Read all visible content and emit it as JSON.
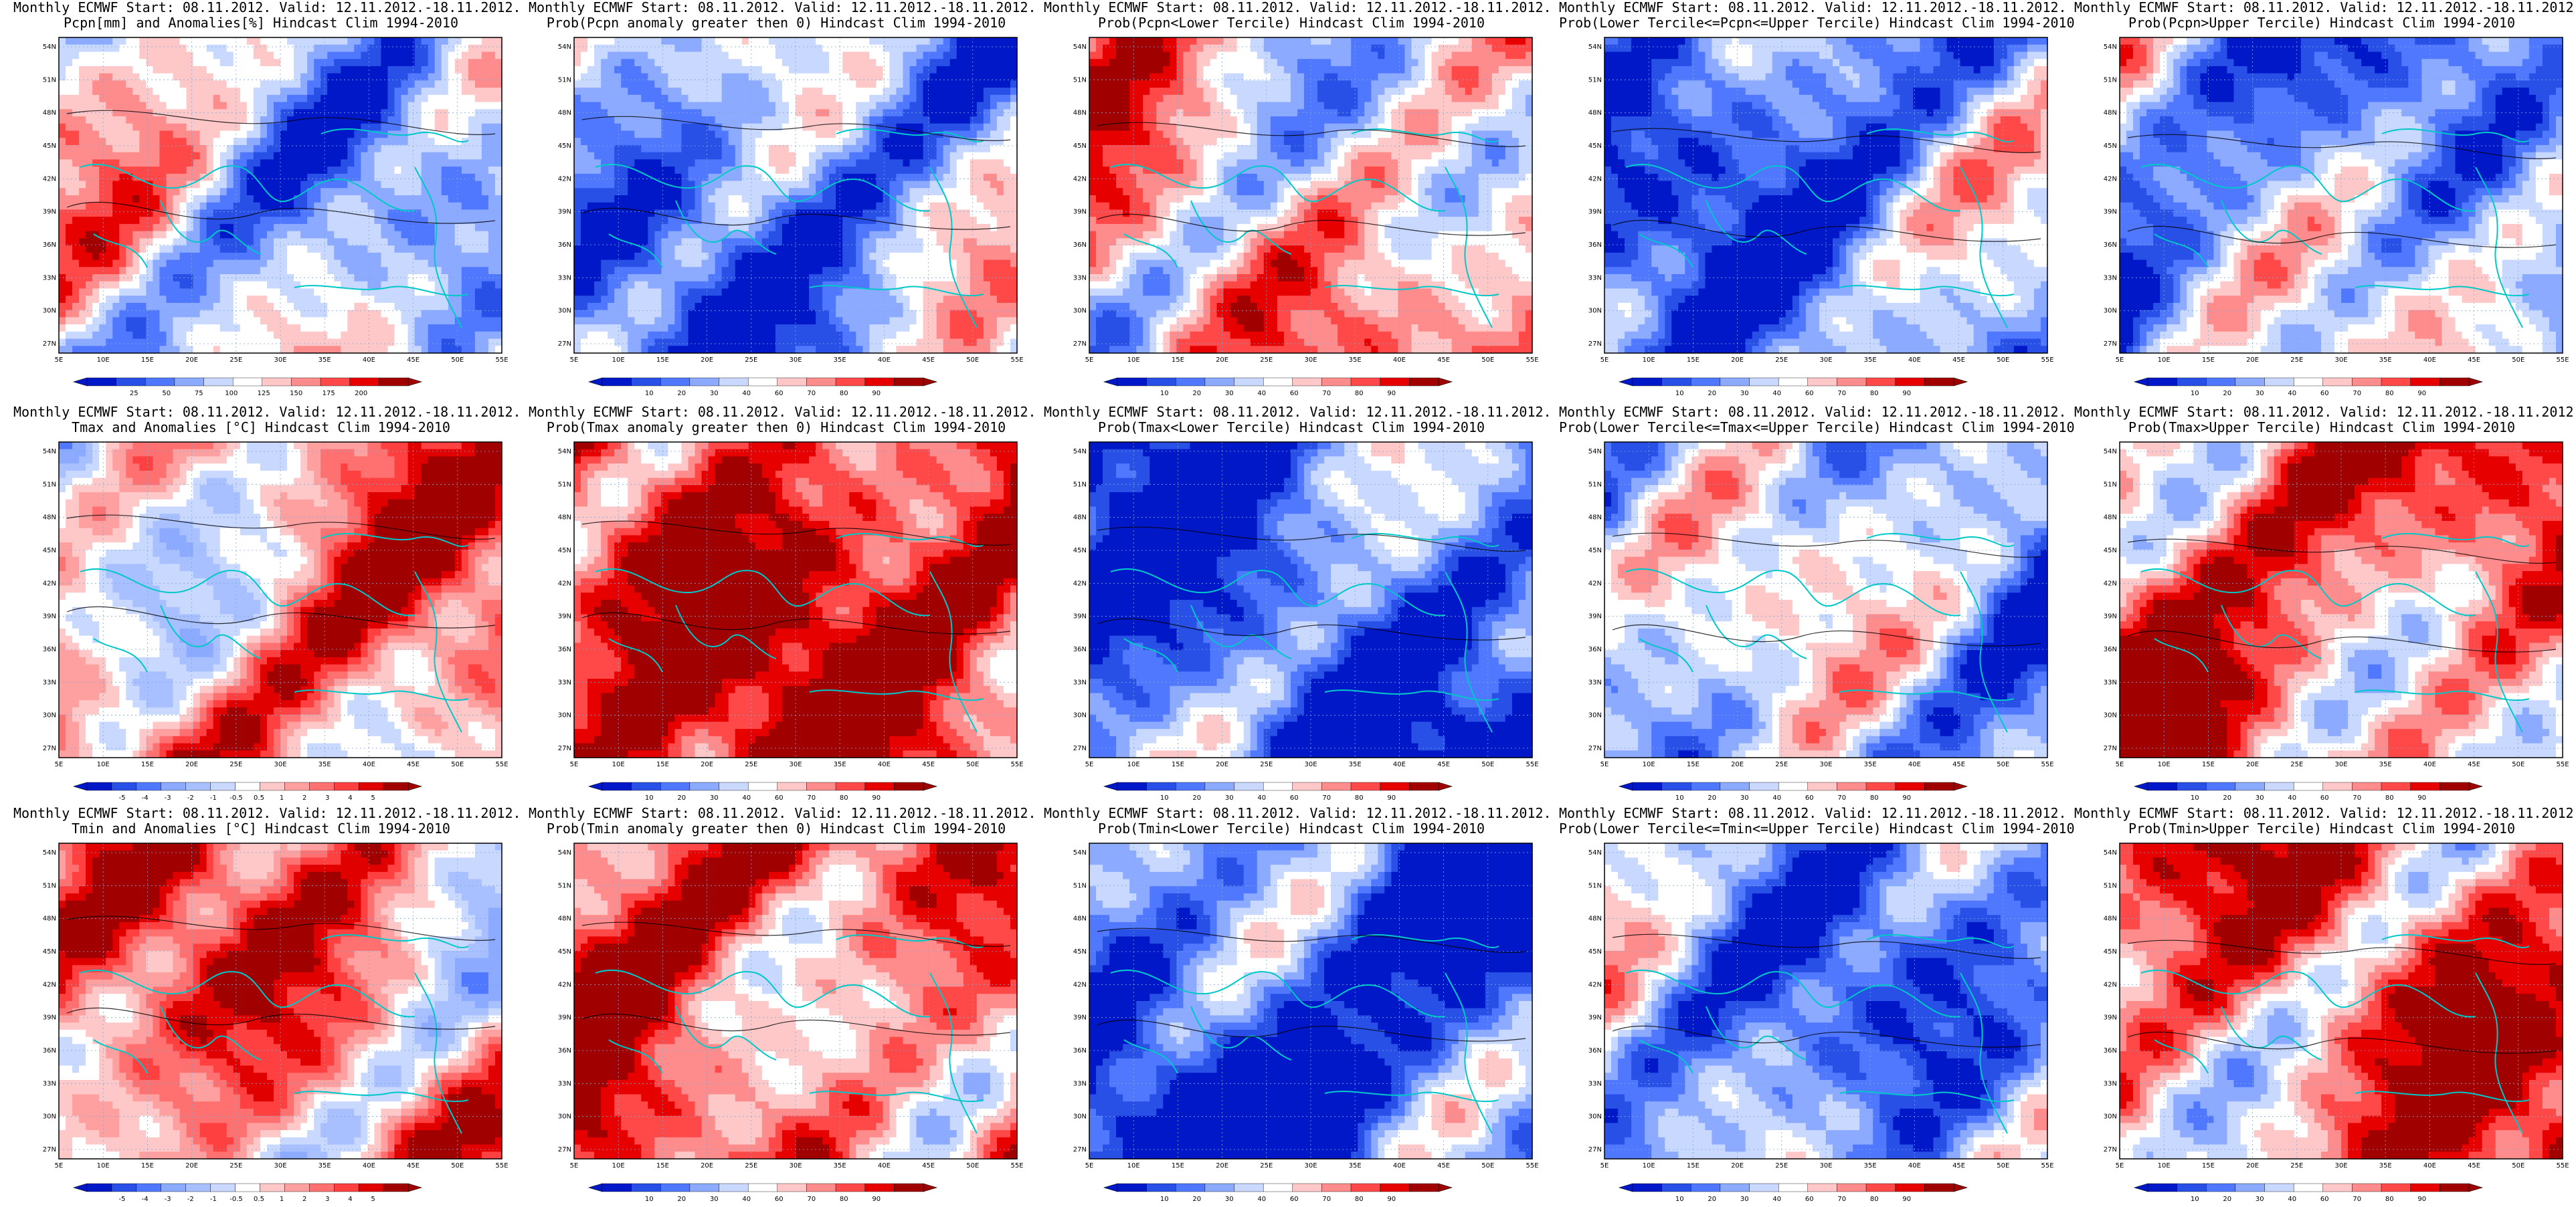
{
  "page": {
    "background": "#ffffff"
  },
  "colors": {
    "coast": "#00c8c8",
    "contour": "#000000",
    "frame": "#000000",
    "grid": "#7fa8d8"
  },
  "map_axes": {
    "xticks": [
      "5E",
      "10E",
      "15E",
      "20E",
      "25E",
      "30E",
      "35E",
      "40E",
      "45E",
      "50E",
      "55E"
    ],
    "yticks": [
      "54N",
      "51N",
      "48N",
      "45N",
      "42N",
      "39N",
      "36N",
      "33N",
      "30N",
      "27N"
    ]
  },
  "scales": {
    "pcpn": {
      "labels": [
        "25",
        "50",
        "75",
        "100",
        "125",
        "150",
        "175",
        "200"
      ],
      "colors": [
        "#0018c8",
        "#2850e6",
        "#5078ff",
        "#8caaff",
        "#c8d8ff",
        "#ffffff",
        "#ffc8c8",
        "#ff8c8c",
        "#ff4848",
        "#e60000",
        "#a00000"
      ]
    },
    "prob": {
      "labels": [
        "10",
        "20",
        "30",
        "40",
        "60",
        "70",
        "80",
        "90"
      ],
      "colors": [
        "#0018c8",
        "#2850e6",
        "#5078ff",
        "#8caaff",
        "#c8d8ff",
        "#ffffff",
        "#ffc8c8",
        "#ff8c8c",
        "#ff4848",
        "#e60000",
        "#a00000"
      ]
    },
    "anom": {
      "labels": [
        "-5",
        "-4",
        "-3",
        "-2",
        "-1",
        "-0.5",
        "0.5",
        "1",
        "2",
        "3",
        "4",
        "5"
      ],
      "colors": [
        "#0018c8",
        "#2850e6",
        "#5078ff",
        "#8caaff",
        "#a8c0ff",
        "#c8d8ff",
        "#ffffff",
        "#ffc8c8",
        "#ffa0a0",
        "#ff7070",
        "#ff4040",
        "#e00000",
        "#a00000"
      ]
    }
  },
  "panels": [
    {
      "line1": "Monthly ECMWF Start: 08.11.2012. Valid: 12.11.2012.-18.11.2012.",
      "line2": "Pcpn[mm] and Anomalies[%] Hindcast Clim 1994-2010",
      "scale": "pcpn",
      "bias": -0.1
    },
    {
      "line1": "Monthly ECMWF Start: 08.11.2012. Valid: 12.11.2012.-18.11.2012.",
      "line2": "Prob(Pcpn anomaly greater then 0) Hindcast Clim 1994-2010",
      "scale": "prob",
      "bias": -0.35
    },
    {
      "line1": "Monthly ECMWF Start: 08.11.2012. Valid: 12.11.2012.-18.11.2012.",
      "line2": "Prob(Pcpn<Lower Tercile) Hindcast Clim 1994-2010",
      "scale": "prob",
      "bias": 0.2
    },
    {
      "line1": "Monthly ECMWF Start: 08.11.2012. Valid: 12.11.2012.-18.11.2012.",
      "line2": "Prob(Lower Tercile<=Pcpn<=Upper Tercile) Hindcast Clim 1994-2010",
      "scale": "prob",
      "bias": -0.45
    },
    {
      "line1": "Monthly ECMWF Start: 08.11.2012. Valid: 12.11.2012.-18.11.2012.",
      "line2": "Prob(Pcpn>Upper Tercile) Hindcast Clim 1994-2010",
      "scale": "prob",
      "bias": -0.35
    },
    {
      "line1": "Monthly ECMWF Start: 08.11.2012. Valid: 12.11.2012.-18.11.2012.",
      "line2": "Tmax and Anomalies [°C] Hindcast Clim 1994-2010",
      "scale": "anom",
      "bias": 0.3
    },
    {
      "line1": "Monthly ECMWF Start: 08.11.2012. Valid: 12.11.2012.-18.11.2012.",
      "line2": "Prob(Tmax anomaly greater then 0) Hindcast Clim 1994-2010",
      "scale": "prob",
      "bias": 0.65
    },
    {
      "line1": "Monthly ECMWF Start: 08.11.2012. Valid: 12.11.2012.-18.11.2012.",
      "line2": "Prob(Tmax<Lower Tercile) Hindcast Clim 1994-2010",
      "scale": "prob",
      "bias": -0.7
    },
    {
      "line1": "Monthly ECMWF Start: 08.11.2012. Valid: 12.11.2012.-18.11.2012.",
      "line2": "Prob(Lower Tercile<=Tmax<=Upper Tercile) Hindcast Clim 1994-2010",
      "scale": "prob",
      "bias": -0.3
    },
    {
      "line1": "Monthly ECMWF Start: 08.11.2012. Valid: 12.11.2012.-18.11.2012.",
      "line2": "Prob(Tmax>Upper Tercile) Hindcast Clim 1994-2010",
      "scale": "prob",
      "bias": 0.45
    },
    {
      "line1": "Monthly ECMWF Start: 08.11.2012. Valid: 12.11.2012.-18.11.2012.",
      "line2": "Tmin and Anomalies [°C] Hindcast Clim 1994-2010",
      "scale": "anom",
      "bias": 0.35
    },
    {
      "line1": "Monthly ECMWF Start: 08.11.2012. Valid: 12.11.2012.-18.11.2012.",
      "line2": "Prob(Tmin anomaly greater then 0) Hindcast Clim 1994-2010",
      "scale": "prob",
      "bias": 0.55
    },
    {
      "line1": "Monthly ECMWF Start: 08.11.2012. Valid: 12.11.2012.-18.11.2012.",
      "line2": "Prob(Tmin<Lower Tercile) Hindcast Clim 1994-2010",
      "scale": "prob",
      "bias": -0.7
    },
    {
      "line1": "Monthly ECMWF Start: 08.11.2012. Valid: 12.11.2012.-18.11.2012.",
      "line2": "Prob(Lower Tercile<=Tmin<=Upper Tercile) Hindcast Clim 1994-2010",
      "scale": "prob",
      "bias": -0.35
    },
    {
      "line1": "Monthly ECMWF Start: 08.11.2012. Valid: 12.11.2012.-18.11.2012.",
      "line2": "Prob(Tmin>Upper Tercile) Hindcast Clim 1994-2010",
      "scale": "prob",
      "bias": 0.5
    }
  ],
  "chart_data": {
    "type": "heatmap",
    "layout": "3 rows x 5 columns of map panels",
    "region": {
      "lon_range": [
        "5E",
        "55E"
      ],
      "lat_range": [
        "27N",
        "54N"
      ]
    },
    "grid": true,
    "colorbar_placement": "bottom"
  }
}
